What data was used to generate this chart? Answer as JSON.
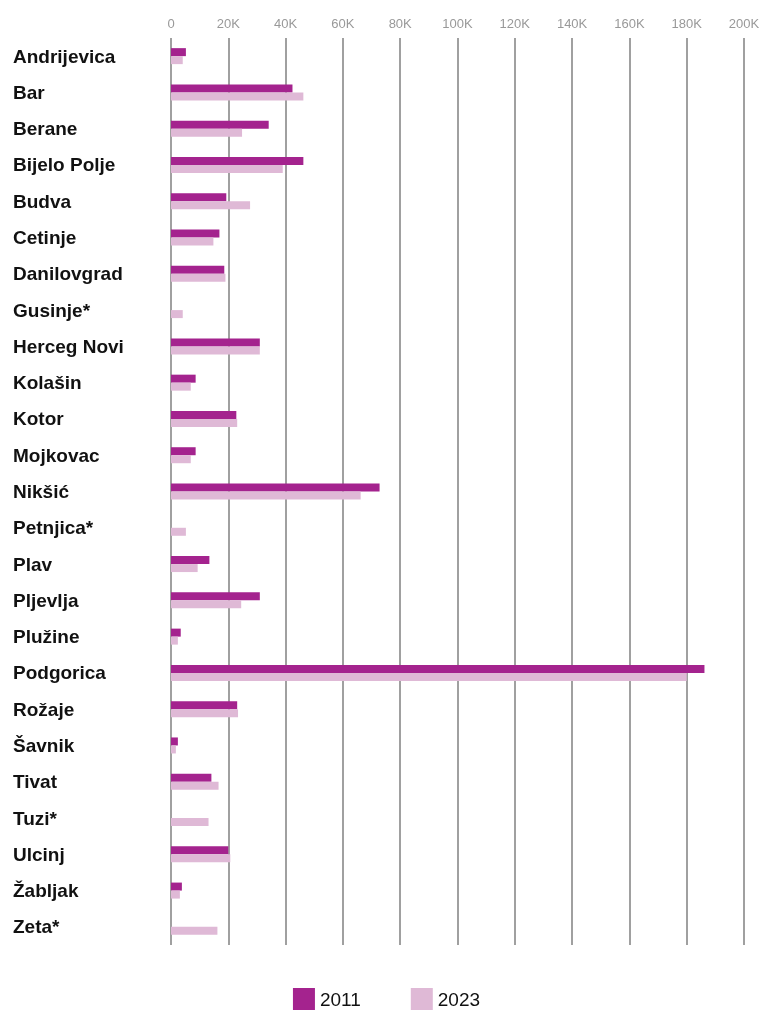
{
  "chart_data": {
    "type": "bar",
    "orientation": "horizontal",
    "categories": [
      "Andrijevica",
      "Bar",
      "Berane",
      "Bijelo Polje",
      "Budva",
      "Cetinje",
      "Danilovgrad",
      "Gusinje*",
      "Herceg Novi",
      "Kolašin",
      "Kotor",
      "Mojkovac",
      "Nikšić",
      "Petnjica*",
      "Plav",
      "Pljevlja",
      "Plužine",
      "Podgorica",
      "Rožaje",
      "Šavnik",
      "Tivat",
      "Tuzi*",
      "Ulcinj",
      "Žabljak",
      "Zeta*"
    ],
    "series": [
      {
        "name": "2011",
        "color": "#a4238e",
        "values": [
          5200,
          42400,
          34100,
          46200,
          19300,
          16900,
          18600,
          null,
          31000,
          8600,
          22800,
          8600,
          72800,
          null,
          13400,
          31000,
          3400,
          186200,
          23100,
          2400,
          14100,
          null,
          20000,
          3800,
          null
        ]
      },
      {
        "name": "2023",
        "color": "#dfb9d6",
        "values": [
          4100,
          46200,
          24800,
          39000,
          27600,
          14800,
          19000,
          4100,
          31000,
          6900,
          23100,
          6900,
          66200,
          5200,
          9300,
          24500,
          2400,
          180000,
          23400,
          1700,
          16600,
          13100,
          20700,
          3100,
          16200
        ]
      }
    ],
    "xlim": [
      0,
      200000
    ],
    "xticks": [
      0,
      {
        "value": 20000,
        "label": "20K"
      },
      {
        "value": 40000,
        "label": "40K"
      },
      {
        "value": 60000,
        "label": "60K"
      },
      {
        "value": 80000,
        "label": "80K"
      },
      {
        "value": 100000,
        "label": "100K"
      },
      {
        "value": 120000,
        "label": "120K"
      },
      {
        "value": 140000,
        "label": "140K"
      },
      {
        "value": 160000,
        "label": "160K"
      },
      {
        "value": 180000,
        "label": "180K"
      },
      {
        "value": 200000,
        "label": "200K"
      }
    ],
    "grid": "x",
    "legend": "bottom"
  }
}
